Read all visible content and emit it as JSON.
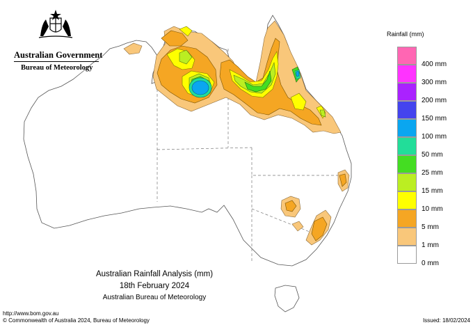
{
  "header": {
    "government": "Australian Government",
    "bureau": "Bureau of Meteorology"
  },
  "legend": {
    "title": "Rainfall (mm)",
    "entries": [
      {
        "label": "400 mm",
        "color": "#ff66b3"
      },
      {
        "label": "300 mm",
        "color": "#ff33ff"
      },
      {
        "label": "200 mm",
        "color": "#aa22ff"
      },
      {
        "label": "150 mm",
        "color": "#4444ee"
      },
      {
        "label": "100 mm",
        "color": "#0aa6f0"
      },
      {
        "label": "50 mm",
        "color": "#22dd99"
      },
      {
        "label": "25 mm",
        "color": "#44dd22"
      },
      {
        "label": "15 mm",
        "color": "#bbee22"
      },
      {
        "label": "10 mm",
        "color": "#ffff00"
      },
      {
        "label": "5 mm",
        "color": "#f5a623"
      },
      {
        "label": "1 mm",
        "color": "#f9c77a"
      },
      {
        "label": "0 mm",
        "color": "#ffffff"
      }
    ]
  },
  "map": {
    "title": "Australian Rainfall Analysis (mm)",
    "date": "18th February 2024",
    "source": "Australian Bureau of Meteorology"
  },
  "footer": {
    "url": "http://www.bom.gov.au",
    "copyright": "© Commonwealth of Australia 2024, Bureau of Meteorology",
    "issued": "Issued: 18/02/2024"
  }
}
